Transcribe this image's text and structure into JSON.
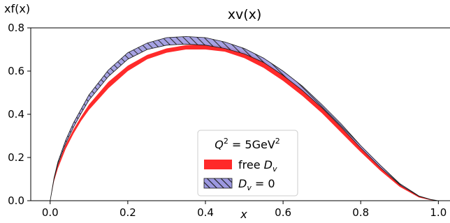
{
  "chart_data": {
    "type": "area",
    "title": "xv(x)",
    "xlabel": "x",
    "ylabel": "xf(x)",
    "xlim": [
      -0.05,
      1.03
    ],
    "ylim": [
      0.0,
      0.8
    ],
    "x_ticks": [
      "0.0",
      "0.2",
      "0.4",
      "0.6",
      "0.8",
      "1.0"
    ],
    "y_ticks": [
      "0.0",
      "0.2",
      "0.4",
      "0.6",
      "0.8"
    ],
    "grid": false,
    "legend_placement": "lower-center",
    "legend_title": "Q² = 5GeV²",
    "colors": {
      "free": "#ff2a2a",
      "dv0_fill": "#9c98e0",
      "hatch": "#1a1a1a",
      "overlap": "#5b2f6b"
    },
    "x": [
      0.0,
      0.01,
      0.02,
      0.04,
      0.06,
      0.08,
      0.1,
      0.15,
      0.2,
      0.25,
      0.3,
      0.35,
      0.4,
      0.45,
      0.5,
      0.55,
      0.6,
      0.65,
      0.7,
      0.75,
      0.8,
      0.85,
      0.9,
      0.95,
      0.98,
      1.0
    ],
    "series": [
      {
        "name": "free D_v",
        "legend_label": "free",
        "legend_symbol": "D",
        "legend_subscript": "v",
        "lower": [
          0.0,
          0.09,
          0.15,
          0.24,
          0.31,
          0.37,
          0.42,
          0.52,
          0.6,
          0.655,
          0.685,
          0.7,
          0.7,
          0.69,
          0.66,
          0.615,
          0.555,
          0.485,
          0.405,
          0.315,
          0.225,
          0.14,
          0.065,
          0.015,
          0.003,
          0.0
        ],
        "upper": [
          0.0,
          0.1,
          0.165,
          0.26,
          0.33,
          0.39,
          0.445,
          0.55,
          0.625,
          0.675,
          0.705,
          0.72,
          0.725,
          0.715,
          0.69,
          0.645,
          0.585,
          0.515,
          0.43,
          0.34,
          0.245,
          0.155,
          0.075,
          0.02,
          0.005,
          0.0
        ]
      },
      {
        "name": "D_v = 0",
        "legend_symbol": "D",
        "legend_subscript": "v",
        "legend_suffix": " = 0",
        "lower": [
          0.0,
          0.1,
          0.17,
          0.265,
          0.34,
          0.405,
          0.465,
          0.575,
          0.655,
          0.7,
          0.72,
          0.725,
          0.72,
          0.705,
          0.68,
          0.64,
          0.58,
          0.51,
          0.43,
          0.34,
          0.245,
          0.155,
          0.075,
          0.02,
          0.005,
          0.0
        ],
        "upper": [
          0.0,
          0.105,
          0.18,
          0.28,
          0.36,
          0.425,
          0.49,
          0.605,
          0.685,
          0.73,
          0.755,
          0.76,
          0.755,
          0.735,
          0.705,
          0.66,
          0.6,
          0.53,
          0.445,
          0.355,
          0.255,
          0.165,
          0.08,
          0.022,
          0.006,
          0.0
        ]
      }
    ]
  }
}
